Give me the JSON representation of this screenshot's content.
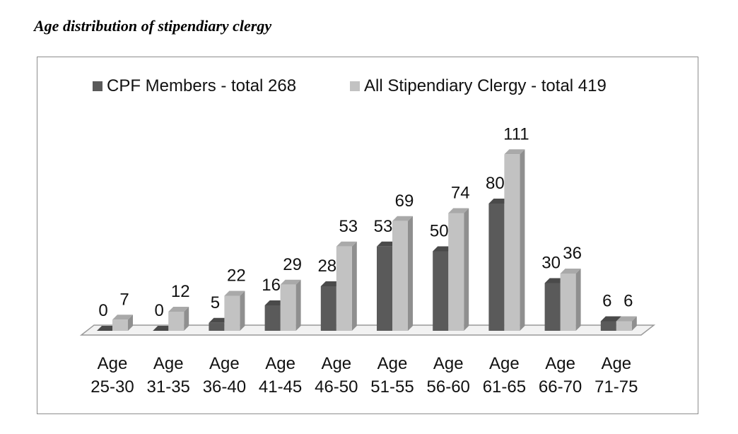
{
  "title": "Age distribution of stipendiary clergy",
  "colors": {
    "series1_front": "#5a5a5a",
    "series1_side": "#3e3e3e",
    "series1_top": "#4a4a4a",
    "series2_front": "#c2c2c2",
    "series2_side": "#8f8f8f",
    "series2_top": "#a9a9a9",
    "floor_stroke": "#9a9a9a"
  },
  "chart_data": {
    "type": "bar",
    "title": "Age distribution of stipendiary clergy",
    "categories": [
      [
        "Age",
        "25-30"
      ],
      [
        "Age",
        "31-35"
      ],
      [
        "Age",
        "36-40"
      ],
      [
        "Age",
        "41-45"
      ],
      [
        "Age",
        "46-50"
      ],
      [
        "Age",
        "51-55"
      ],
      [
        "Age",
        "56-60"
      ],
      [
        "Age",
        "61-65"
      ],
      [
        "Age",
        "66-70"
      ],
      [
        "Age",
        "71-75"
      ]
    ],
    "series": [
      {
        "name": "CPF Members - total 268",
        "values": [
          0,
          0,
          5,
          16,
          28,
          53,
          50,
          80,
          30,
          6
        ]
      },
      {
        "name": "All Stipendiary Clergy - total 419",
        "values": [
          7,
          12,
          22,
          29,
          53,
          69,
          74,
          111,
          36,
          6
        ]
      }
    ],
    "legend_position": "top",
    "ylim": [
      0,
      111
    ],
    "grid": false,
    "data_labels": true,
    "xlabel": "",
    "ylabel": ""
  }
}
